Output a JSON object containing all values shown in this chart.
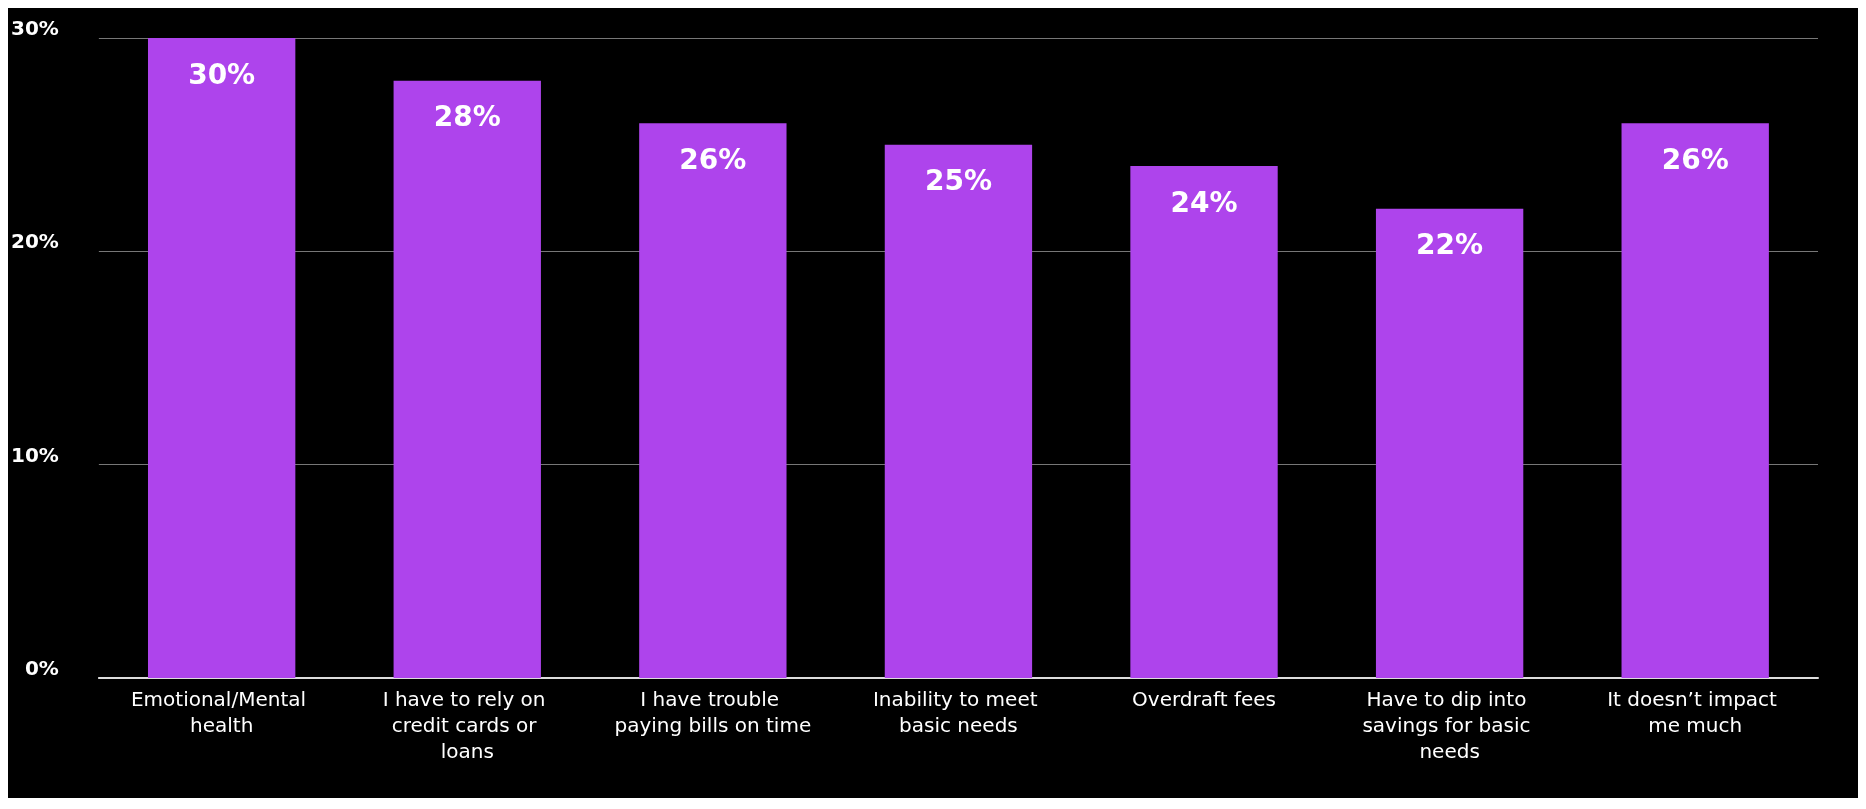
{
  "chart_data": {
    "type": "bar",
    "categories": [
      "Emotional/Mental health",
      "I have to rely on credit cards or loans",
      "I have trouble paying bills on time",
      "Inability to meet basic needs",
      "Overdraft fees",
      "Have to dip into savings for basic needs",
      "It doesn’t impact me much"
    ],
    "values": [
      30,
      28,
      26,
      25,
      24,
      22,
      26
    ],
    "value_labels": [
      "30%",
      "28%",
      "26%",
      "25%",
      "24%",
      "22%",
      "26%"
    ],
    "color": "#ae44ec",
    "ylim": [
      0,
      30
    ],
    "yticks": [
      {
        "value": 0,
        "label": "0%"
      },
      {
        "value": 10,
        "label": "10%"
      },
      {
        "value": 20,
        "label": "20%"
      },
      {
        "value": 30,
        "label": "30%"
      }
    ],
    "grid": "y"
  }
}
